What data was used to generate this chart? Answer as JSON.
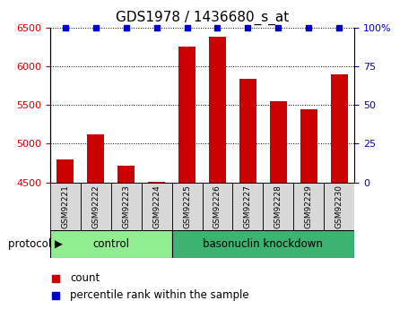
{
  "title": "GDS1978 / 1436680_s_at",
  "samples": [
    "GSM92221",
    "GSM92222",
    "GSM92223",
    "GSM92224",
    "GSM92225",
    "GSM92226",
    "GSM92227",
    "GSM92228",
    "GSM92229",
    "GSM92230"
  ],
  "counts": [
    4800,
    5120,
    4720,
    4510,
    6260,
    6380,
    5840,
    5550,
    5440,
    5900
  ],
  "ylim_left": [
    4500,
    6500
  ],
  "ylim_right": [
    0,
    100
  ],
  "bar_color": "#cc0000",
  "dot_color": "#0000cc",
  "grid_color": "#000000",
  "title_fontsize": 11,
  "tick_color_left": "#cc0000",
  "tick_color_right": "#0000cc",
  "control_color": "#90EE90",
  "knockdown_color": "#3CB371",
  "xticklabel_bg": "#d8d8d8",
  "ctrl_count": 4,
  "kd_count": 6,
  "protocol_label": "protocol",
  "legend_count_label": "count",
  "legend_percentile_label": "percentile rank within the sample"
}
